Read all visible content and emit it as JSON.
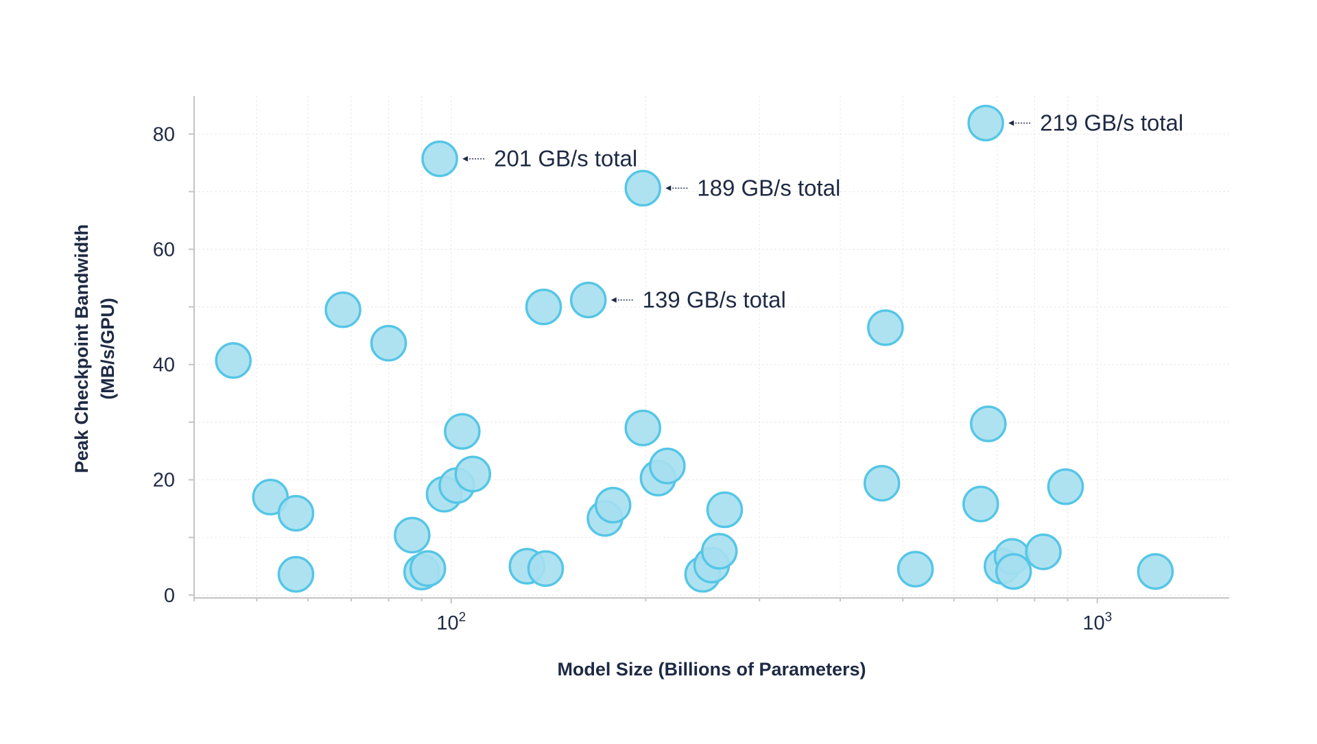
{
  "chart_data": {
    "type": "scatter",
    "title": "",
    "xlabel": "Model Size (Billions of Parameters)",
    "ylabel_lines": [
      "Peak Checkpoint Bandwidth",
      "(MB/s/GPU)"
    ],
    "xscale": "log",
    "xlim": [
      40,
      1600
    ],
    "ylim": [
      -0.5,
      86
    ],
    "grid": true,
    "x_ticks": [
      {
        "value": 100,
        "base": "10",
        "exp": "2"
      },
      {
        "value": 1000,
        "base": "10",
        "exp": "3"
      }
    ],
    "y_ticks": [
      0,
      20,
      40,
      60,
      80
    ],
    "series": [
      {
        "points": [
          {
            "x": 46,
            "y": 40.7
          },
          {
            "x": 52.5,
            "y": 17.0
          },
          {
            "x": 57.5,
            "y": 14.2
          },
          {
            "x": 57.5,
            "y": 3.6
          },
          {
            "x": 68,
            "y": 49.5
          },
          {
            "x": 80,
            "y": 43.7
          },
          {
            "x": 87,
            "y": 10.4
          },
          {
            "x": 90,
            "y": 4.0
          },
          {
            "x": 92,
            "y": 4.6
          },
          {
            "x": 96,
            "y": 75.7
          },
          {
            "x": 97.5,
            "y": 17.5
          },
          {
            "x": 102,
            "y": 19.0
          },
          {
            "x": 104,
            "y": 28.4
          },
          {
            "x": 108,
            "y": 21.0
          },
          {
            "x": 131,
            "y": 5.0
          },
          {
            "x": 139,
            "y": 50.0
          },
          {
            "x": 140,
            "y": 4.6
          },
          {
            "x": 163,
            "y": 51.2
          },
          {
            "x": 173,
            "y": 13.3
          },
          {
            "x": 178,
            "y": 15.6
          },
          {
            "x": 198,
            "y": 70.6
          },
          {
            "x": 198,
            "y": 29.0
          },
          {
            "x": 209,
            "y": 20.3
          },
          {
            "x": 216,
            "y": 22.4
          },
          {
            "x": 245,
            "y": 3.6
          },
          {
            "x": 253,
            "y": 5.2
          },
          {
            "x": 260,
            "y": 7.6
          },
          {
            "x": 265,
            "y": 14.8
          },
          {
            "x": 464,
            "y": 19.4
          },
          {
            "x": 470,
            "y": 46.4
          },
          {
            "x": 523,
            "y": 4.5
          },
          {
            "x": 660,
            "y": 15.8
          },
          {
            "x": 672,
            "y": 81.9
          },
          {
            "x": 678,
            "y": 29.7
          },
          {
            "x": 712,
            "y": 5.0
          },
          {
            "x": 738,
            "y": 6.7
          },
          {
            "x": 742,
            "y": 4.1
          },
          {
            "x": 825,
            "y": 7.5
          },
          {
            "x": 893,
            "y": 18.8
          },
          {
            "x": 1230,
            "y": 4.1
          }
        ]
      }
    ],
    "annotations": [
      {
        "text": "219 GB/s total",
        "x": 672,
        "y": 81.9
      },
      {
        "text": "201 GB/s total",
        "x": 96,
        "y": 75.7
      },
      {
        "text": "189 GB/s total",
        "x": 198,
        "y": 70.6
      },
      {
        "text": "139 GB/s total",
        "x": 163,
        "y": 51.2
      }
    ],
    "colors": {
      "marker_fill": "#a6dff0",
      "marker_edge": "#55c6e6",
      "text": "#1e2a44",
      "grid": "#ececec",
      "axis": "#c4c4c4"
    }
  }
}
